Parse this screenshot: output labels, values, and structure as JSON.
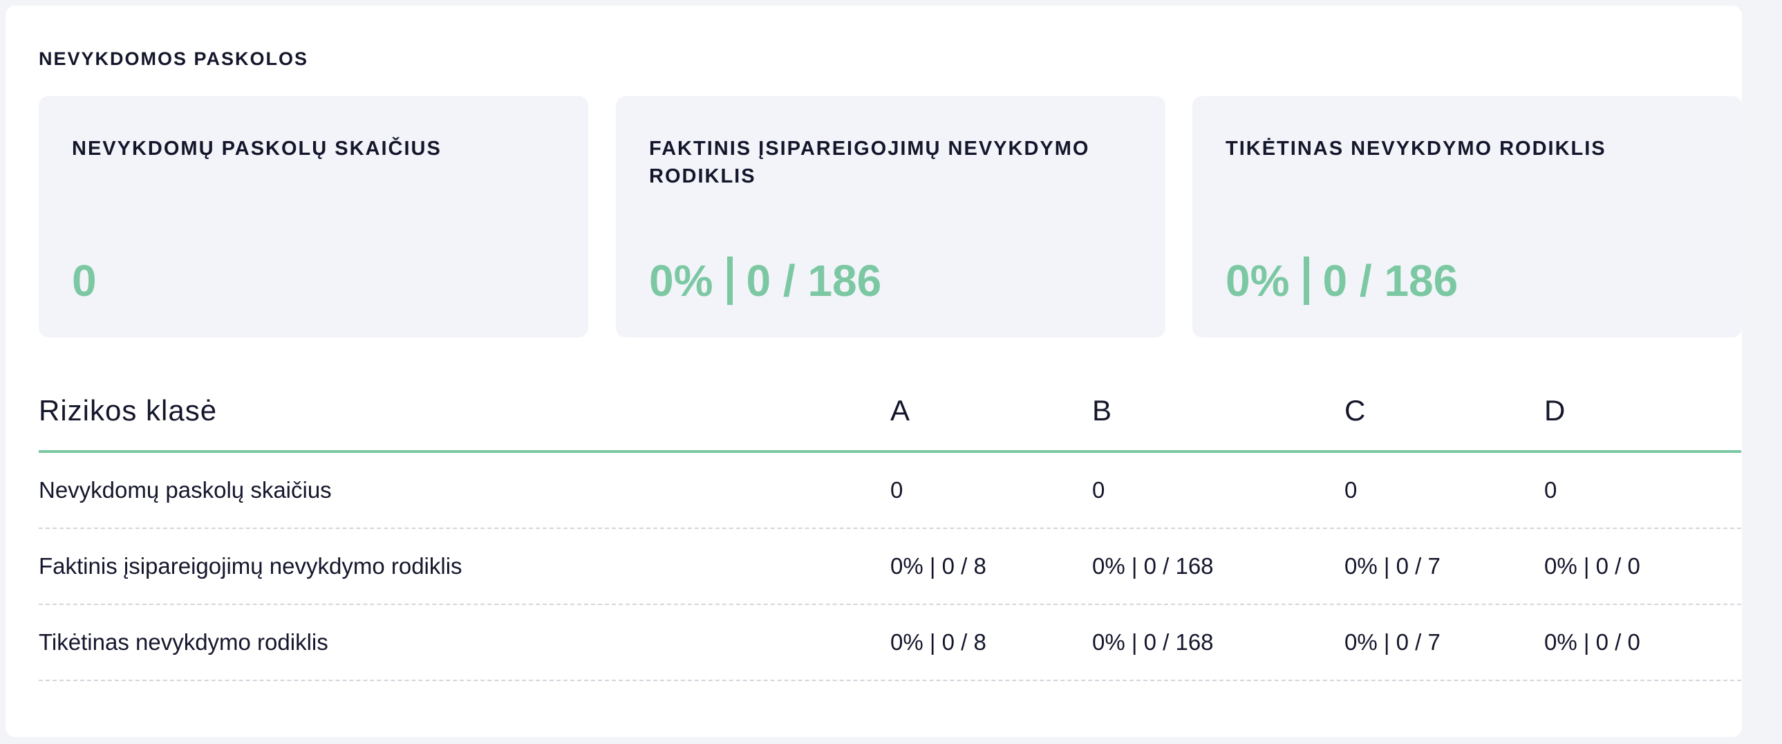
{
  "section": {
    "title": "NEVYKDOMOS PASKOLOS"
  },
  "cards": [
    {
      "label": "NEVYKDOMŲ PASKOLŲ SKAIČIUS",
      "value": "0",
      "percent": "",
      "ratio": ""
    },
    {
      "label": "FAKTINIS ĮSIPAREIGOJIMŲ NEVYKDYMO RODIKLIS",
      "value": "",
      "percent": "0%",
      "ratio": "0 / 186"
    },
    {
      "label": "TIKĖTINAS NEVYKDYMO RODIKLIS",
      "value": "",
      "percent": "0%",
      "ratio": "0 / 186"
    }
  ],
  "table": {
    "headers": [
      "Rizikos klasė",
      "A",
      "B",
      "C",
      "D"
    ],
    "rows": [
      [
        "Nevykdomų paskolų skaičius",
        "0",
        "0",
        "0",
        "0"
      ],
      [
        "Faktinis įsipareigojimų nevykdymo rodiklis",
        "0% | 0 / 8",
        "0% | 0 / 168",
        "0% | 0 / 7",
        "0% | 0 / 0"
      ],
      [
        "Tikėtinas nevykdymo rodiklis",
        "0% | 0 / 8",
        "0% | 0 / 168",
        "0% | 0 / 7",
        "0% | 0 / 0"
      ]
    ]
  },
  "colors": {
    "accent": "#7cc8a3",
    "card_bg": "#f2f4f9",
    "text": "#14162b"
  }
}
